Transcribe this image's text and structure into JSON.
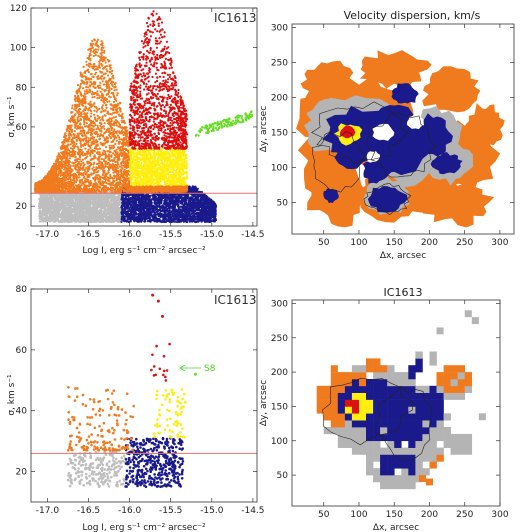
{
  "chart_data": [
    {
      "type": "scatter",
      "panel": "top-left",
      "label": "IC1613",
      "xlabel": "Log I, erg s⁻¹ cm⁻² arcsec⁻²",
      "ylabel": "σ, km s⁻¹",
      "xlim": [
        -17.2,
        -14.45
      ],
      "ylim": [
        10,
        120
      ],
      "xticks": [
        "-17.0",
        "-16.5",
        "-16.0",
        "-15.5",
        "-15.0",
        "-14.5"
      ],
      "yticks": [
        "20",
        "40",
        "60",
        "80",
        "100",
        "120"
      ],
      "xtick_values": [
        -17.0,
        -16.5,
        -16.0,
        -15.5,
        -15.0,
        -14.5
      ],
      "ytick_values": [
        20,
        40,
        60,
        80,
        100,
        120
      ],
      "hline": 26.5,
      "colors": {
        "gray": "#bebebe",
        "navy": "#1a1a8c",
        "orange": "#f07b1e",
        "yellow": "#ffee11",
        "red": "#dd1111",
        "green": "#66dd22",
        "line": "#e87070"
      },
      "series": [
        {
          "color": "gray",
          "n": 2600,
          "xr": [
            -17.1,
            -16.1
          ],
          "yr": [
            12,
            27.5
          ],
          "shape": "rect"
        },
        {
          "color": "navy",
          "n": 2600,
          "xr": [
            -16.1,
            -14.95
          ],
          "yr": [
            12,
            30
          ],
          "shape": "navy"
        },
        {
          "color": "orange",
          "n": 3200,
          "xr": [
            -17.15,
            -16.0
          ],
          "yr": [
            27,
            105
          ],
          "shape": "orangeHill"
        },
        {
          "color": "yellow",
          "n": 1400,
          "xr": [
            -16.0,
            -15.3
          ],
          "yr": [
            30,
            49
          ],
          "shape": "rect"
        },
        {
          "color": "orange",
          "n": 500,
          "xr": [
            -16.0,
            -15.3
          ],
          "yr": [
            27,
            30
          ],
          "shape": "rect"
        },
        {
          "color": "red",
          "n": 1300,
          "xr": [
            -16.0,
            -15.3
          ],
          "yr": [
            49,
            119
          ],
          "shape": "redPeak"
        },
        {
          "color": "green",
          "n": 150,
          "xr": [
            -15.2,
            -14.5
          ],
          "yr": [
            55,
            66
          ],
          "shape": "greenBand"
        }
      ]
    },
    {
      "type": "heatmap",
      "panel": "top-right",
      "title": "Velocity dispersion, km/s",
      "xlabel": "Δx, arcsec",
      "ylabel": "Δy, arcsec",
      "xlim": [
        5,
        320
      ],
      "ylim": [
        5,
        305
      ],
      "xticks": [
        "50",
        "100",
        "150",
        "200",
        "250",
        "300"
      ],
      "yticks": [
        "50",
        "100",
        "150",
        "200",
        "250",
        "300"
      ],
      "xtick_values": [
        50,
        100,
        150,
        200,
        250,
        300
      ],
      "ytick_values": [
        50,
        100,
        150,
        200,
        250,
        300
      ]
    },
    {
      "type": "scatter",
      "panel": "bottom-left",
      "label": "IC1613",
      "xlabel": "Log I, erg s⁻¹ cm⁻² arcsec⁻²",
      "ylabel": "σ, km s⁻¹",
      "xlim": [
        -17.2,
        -14.45
      ],
      "ylim": [
        10,
        80
      ],
      "xticks": [
        "-17.0",
        "-16.5",
        "-16.0",
        "-15.5",
        "-15.0",
        "-14.5"
      ],
      "yticks": [
        "20",
        "40",
        "60",
        "80"
      ],
      "xtick_values": [
        -17.0,
        -16.5,
        -16.0,
        -15.5,
        -15.0,
        -14.5
      ],
      "ytick_values": [
        20,
        40,
        60,
        80
      ],
      "hline": 26,
      "annotation": {
        "text": "S8",
        "x": -15.15,
        "y": 52
      },
      "series": [
        {
          "color": "gray",
          "n": 220,
          "xr": [
            -16.75,
            -16.05
          ],
          "yr": [
            15,
            26.5
          ],
          "shape": "rect"
        },
        {
          "color": "navy",
          "n": 420,
          "xr": [
            -16.05,
            -15.35
          ],
          "yr": [
            15,
            31
          ],
          "shape": "rect"
        },
        {
          "color": "orange",
          "n": 170,
          "xr": [
            -16.75,
            -15.95
          ],
          "yr": [
            27,
            48
          ],
          "shape": "orangeSmall"
        },
        {
          "color": "yellow",
          "n": 75,
          "xr": [
            -15.7,
            -15.3
          ],
          "yr": [
            31,
            47
          ],
          "shape": "rect"
        },
        {
          "color": "red",
          "n": 14,
          "xr": [
            -15.75,
            -15.5
          ],
          "yr": [
            48,
            62
          ],
          "shape": "rect"
        }
      ],
      "points": [
        {
          "color": "red",
          "x": -15.72,
          "y": 78
        },
        {
          "color": "red",
          "x": -15.65,
          "y": 76
        },
        {
          "color": "red",
          "x": -15.6,
          "y": 71
        },
        {
          "color": "green",
          "x": -15.2,
          "y": 52
        }
      ]
    },
    {
      "type": "heatmap",
      "panel": "bottom-right",
      "title": "IC1613",
      "xlabel": "Δx, arcsec",
      "ylabel": "Δy, arcsec",
      "xlim": [
        5,
        300
      ],
      "ylim": [
        5,
        305
      ],
      "xticks": [
        "50",
        "100",
        "150",
        "200",
        "250",
        "300"
      ],
      "yticks": [
        "50",
        "100",
        "150",
        "200",
        "250",
        "300"
      ],
      "xtick_values": [
        50,
        100,
        150,
        200,
        250,
        300
      ],
      "ytick_values": [
        50,
        100,
        150,
        200,
        250,
        300
      ]
    }
  ]
}
